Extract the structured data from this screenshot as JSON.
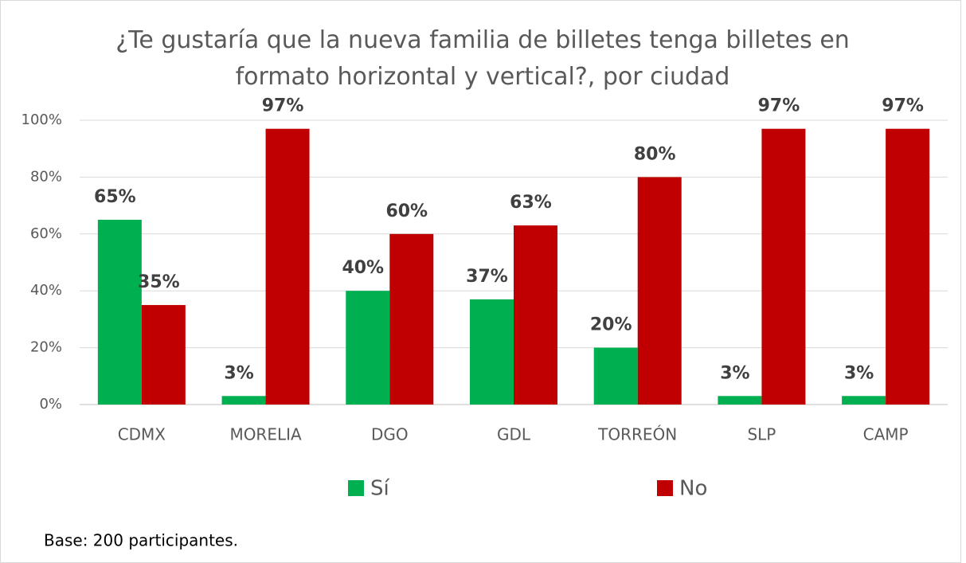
{
  "chart_data": {
    "type": "bar",
    "title": "¿Te gustaría que la nueva familia de billetes tenga billetes en formato horizontal y vertical?, por ciudad",
    "categories": [
      "CDMX",
      "MORELIA",
      "DGO",
      "GDL",
      "TORREÓN",
      "SLP",
      "CAMP"
    ],
    "series": [
      {
        "name": "Sí",
        "color": "#00b050",
        "values": [
          65,
          3,
          40,
          37,
          20,
          3,
          3
        ],
        "value_labels": [
          "65%",
          "3%",
          "40%",
          "37%",
          "20%",
          "3%",
          "3%"
        ]
      },
      {
        "name": "No",
        "color": "#c00000",
        "values": [
          35,
          97,
          60,
          63,
          80,
          97,
          97
        ],
        "value_labels": [
          "35%",
          "97%",
          "60%",
          "63%",
          "80%",
          "97%",
          "97%"
        ]
      }
    ],
    "ylim": [
      0,
      100
    ],
    "yticks": [
      {
        "value": 0,
        "label": "0%"
      },
      {
        "value": 20,
        "label": "20%"
      },
      {
        "value": 40,
        "label": "40%"
      },
      {
        "value": 60,
        "label": "60%"
      },
      {
        "value": 80,
        "label": "80%"
      },
      {
        "value": 100,
        "label": "100%"
      }
    ],
    "grid": true,
    "legend": "bottom",
    "note": "Base: 200 participantes."
  }
}
